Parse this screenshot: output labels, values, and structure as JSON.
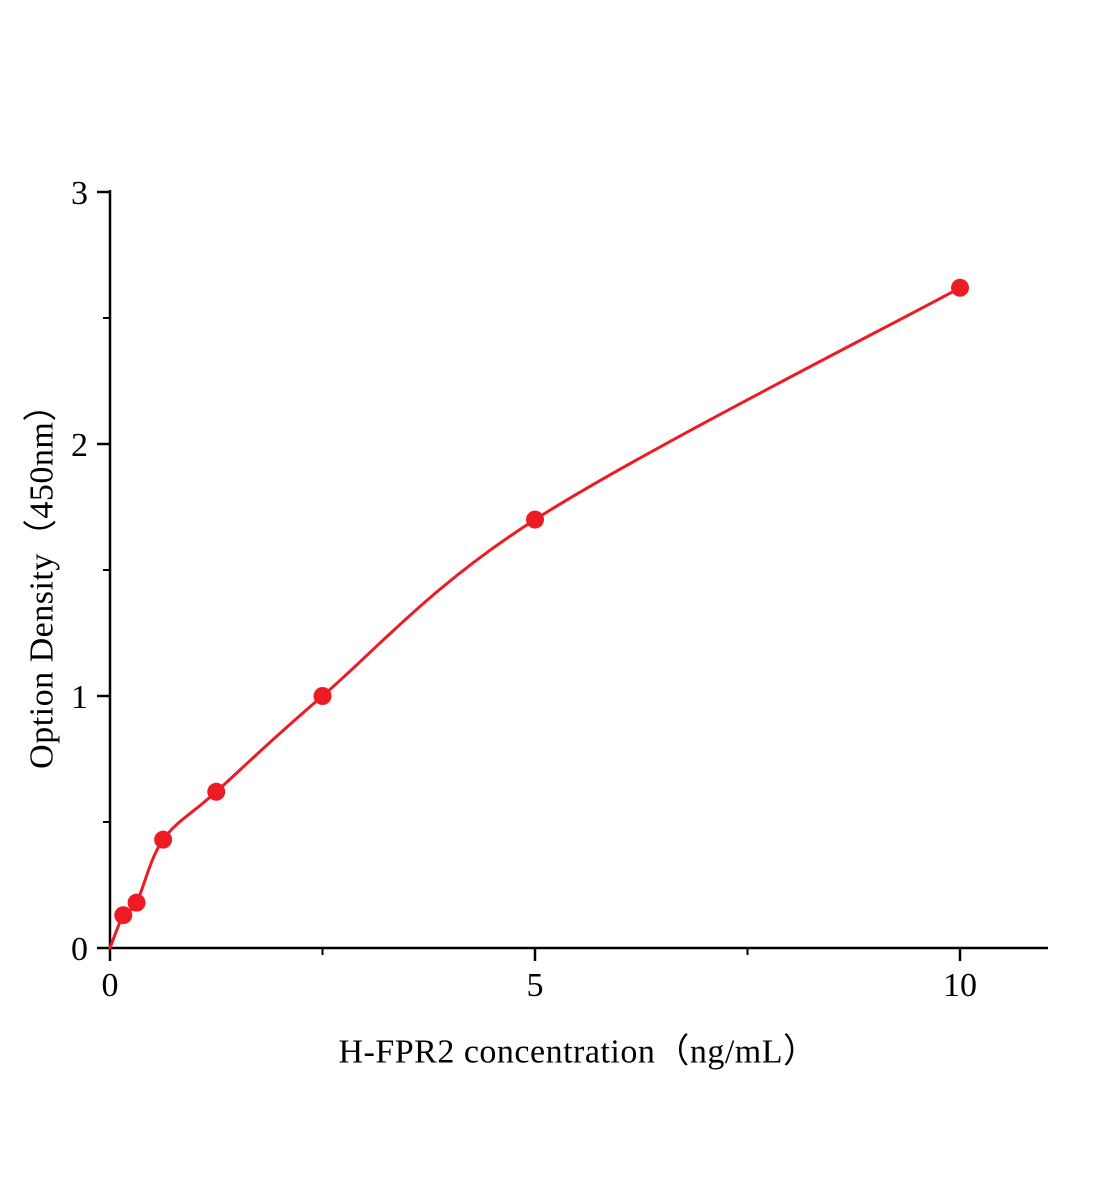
{
  "chart_data": {
    "type": "scatter",
    "title": "",
    "xlabel": "H-FPR2 concentration（ng/mL）",
    "ylabel": "Option Density（450nm）",
    "x": [
      0.156,
      0.3125,
      0.625,
      1.25,
      2.5,
      5,
      10
    ],
    "y": [
      0.13,
      0.18,
      0.43,
      0.62,
      1.0,
      1.7,
      2.62
    ],
    "curve_start": {
      "x": 0,
      "y": 0
    },
    "xlim": [
      0,
      11
    ],
    "ylim": [
      0,
      3
    ],
    "x_major_ticks": [
      0,
      5,
      10
    ],
    "x_major_tick_labels": [
      "0",
      "5",
      "10"
    ],
    "x_minor_ticks": [
      2.5,
      7.5
    ],
    "y_major_ticks": [
      0,
      1,
      2,
      3
    ],
    "y_major_tick_labels": [
      "0",
      "1",
      "2",
      "3"
    ],
    "y_minor_ticks": [
      0.5,
      1.5,
      2.5
    ],
    "grid": "off",
    "legend": "none",
    "line_color": "#ed1c24",
    "point_color": "#ed1c24",
    "axis_color": "#000000",
    "background_color": "#ffffff",
    "point_radius": 9,
    "line_width": 3
  }
}
